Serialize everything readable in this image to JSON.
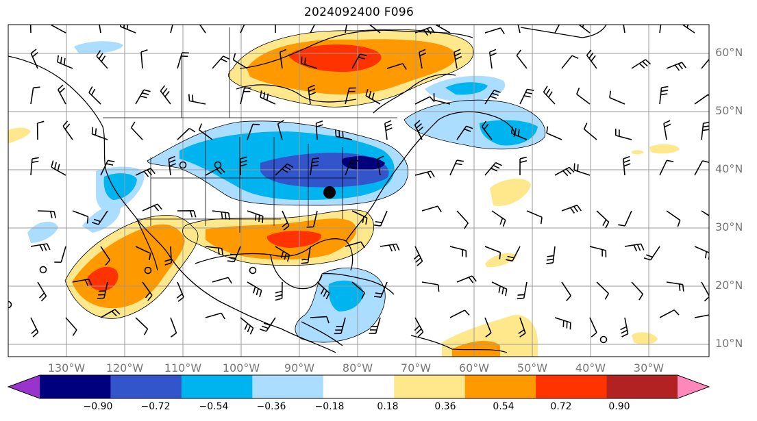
{
  "title": "2024092400 F096",
  "lat_labels": [
    "60°N",
    "50°N",
    "40°N",
    "30°N",
    "20°N",
    "10°N"
  ],
  "lon_labels": [
    "130°W",
    "120°W",
    "110°W",
    "100°W",
    "90°W",
    "80°W",
    "70°W",
    "60°W",
    "50°W",
    "40°W",
    "30°W"
  ],
  "colorbar": {
    "colors": [
      "#9933cc",
      "#00007f",
      "#3355cc",
      "#00b4f0",
      "#aaddff",
      "#ffffff",
      "#ffe88c",
      "#ff9900",
      "#ff3300",
      "#b22222",
      "#ff88bb"
    ],
    "ticks": [
      "−0.90",
      "−0.72",
      "−0.54",
      "−0.36",
      "−0.18",
      "0.18",
      "0.36",
      "0.54",
      "0.72",
      "0.90"
    ]
  },
  "marker": {
    "label": ""
  },
  "palette": {
    "grid": "#9a9a9a",
    "coast": "#000000",
    "label_gray": "#777777"
  }
}
